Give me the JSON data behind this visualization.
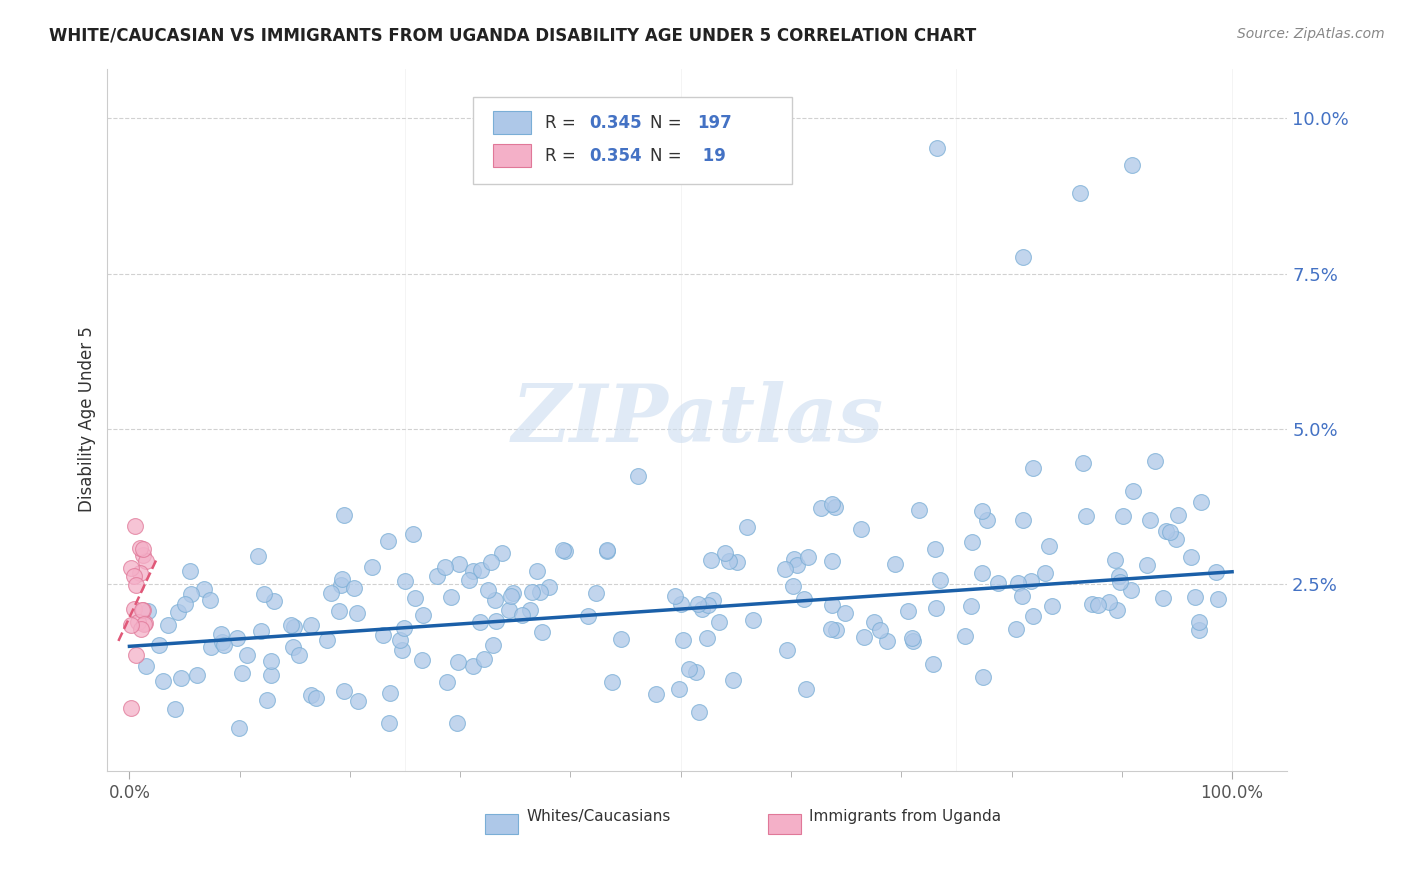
{
  "title": "WHITE/CAUCASIAN VS IMMIGRANTS FROM UGANDA DISABILITY AGE UNDER 5 CORRELATION CHART",
  "source": "Source: ZipAtlas.com",
  "ylabel": "Disability Age Under 5",
  "xlim": [
    -0.02,
    1.05
  ],
  "ylim": [
    -0.005,
    0.108
  ],
  "blue_color": "#aec8e8",
  "blue_edge_color": "#7aaed6",
  "pink_color": "#f4b0c8",
  "pink_edge_color": "#e07898",
  "trend_blue": "#1a5fa8",
  "trend_pink": "#e05878",
  "R_blue": 0.345,
  "N_blue": 197,
  "R_pink": 0.354,
  "N_pink": 19,
  "legend_label_blue": "Whites/Caucasians",
  "legend_label_pink": "Immigrants from Uganda",
  "ytick_color": "#4472c4",
  "xtick_color": "#555555"
}
